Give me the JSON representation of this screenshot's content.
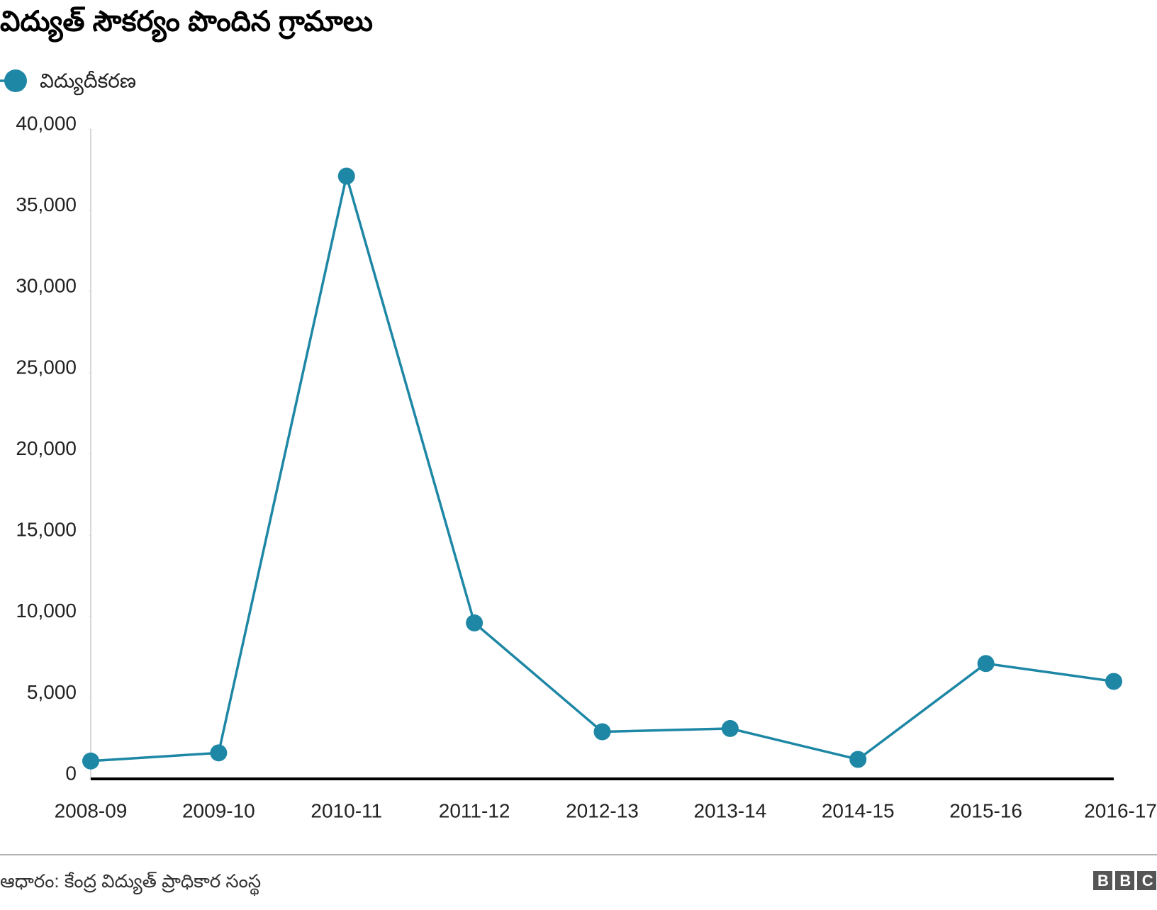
{
  "title": "విద్యుత్ సౌకర్యం పొందిన గ్రామాలు",
  "source": "ఆధారం: కేంద్ర విద్యుత్ ప్రాధికార సంస్థ",
  "logo": "BBC",
  "chart_data": {
    "type": "line",
    "categories": [
      "2008-09",
      "2009-10",
      "2010-11",
      "2011-12",
      "2012-13",
      "2013-14",
      "2014-15",
      "2015-16",
      "2016-17"
    ],
    "series": [
      {
        "name": "విద్యుదీకరణ",
        "color": "#1d87a5",
        "values": [
          1100,
          1600,
          37100,
          9600,
          2900,
          3100,
          1200,
          7100,
          6000
        ]
      }
    ],
    "ylim": [
      0,
      40000
    ],
    "yticks": [
      0,
      {
        "value": 5000,
        "label": "5,000"
      },
      {
        "value": 10000,
        "label": "10,000"
      },
      {
        "value": 15000,
        "label": "15,000"
      },
      {
        "value": 20000,
        "label": "20,000"
      },
      {
        "value": 25000,
        "label": "25,000"
      },
      {
        "value": 30000,
        "label": "30,000"
      },
      {
        "value": 35000,
        "label": "35,000"
      },
      {
        "value": 40000,
        "label": "40,000"
      }
    ],
    "legend": "top-left",
    "grid": false
  }
}
